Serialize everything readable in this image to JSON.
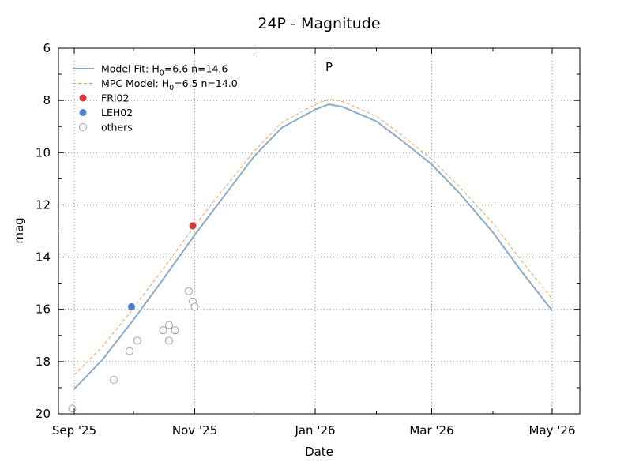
{
  "chart_data": {
    "type": "scatter",
    "title": "24P - Magnitude",
    "xlabel": "Date",
    "ylabel": "mag",
    "xlim": [
      "2025-08-24",
      "2026-05-15"
    ],
    "ylim": [
      20,
      6
    ],
    "y_inverted": true,
    "grid": true,
    "legend_position": "top-left",
    "x_ticks": [
      {
        "date": "2025-09-01",
        "label": "Sep '25"
      },
      {
        "date": "2025-11-01",
        "label": "Nov '25"
      },
      {
        "date": "2026-01-01",
        "label": "Jan '26"
      },
      {
        "date": "2026-03-01",
        "label": "Mar '26"
      },
      {
        "date": "2026-05-01",
        "label": "May '26"
      }
    ],
    "y_ticks": [
      6,
      8,
      10,
      12,
      14,
      16,
      18,
      20
    ],
    "perihelion": {
      "label": "P",
      "date": "2026-01-08"
    },
    "series": [
      {
        "name": "Model Fit: H0=6.6 n=14.6",
        "legend_main": "Model Fit: H",
        "legend_sub": "0",
        "legend_rest": "=6.6 n=14.6",
        "style": "line",
        "color": "#8aabca",
        "points": [
          [
            "2025-09-01",
            19.05
          ],
          [
            "2025-09-15",
            17.95
          ],
          [
            "2025-10-01",
            16.4
          ],
          [
            "2025-10-15",
            14.95
          ],
          [
            "2025-11-01",
            13.15
          ],
          [
            "2025-11-15",
            11.75
          ],
          [
            "2025-12-01",
            10.15
          ],
          [
            "2025-12-15",
            9.05
          ],
          [
            "2026-01-01",
            8.35
          ],
          [
            "2026-01-08",
            8.15
          ],
          [
            "2026-01-15",
            8.25
          ],
          [
            "2026-02-01",
            8.8
          ],
          [
            "2026-02-15",
            9.6
          ],
          [
            "2026-03-01",
            10.45
          ],
          [
            "2026-03-15",
            11.55
          ],
          [
            "2026-04-01",
            13.05
          ],
          [
            "2026-04-15",
            14.5
          ],
          [
            "2026-05-01",
            16.05
          ]
        ]
      },
      {
        "name": "MPC Model: H0=6.5 n=14.0",
        "legend_main": "MPC Model: H",
        "legend_sub": "0",
        "legend_rest": "=6.5 n=14.0",
        "style": "dashed-line",
        "color": "#f0a050",
        "points": [
          [
            "2025-09-01",
            18.5
          ],
          [
            "2025-09-15",
            17.45
          ],
          [
            "2025-10-01",
            15.95
          ],
          [
            "2025-10-15",
            14.55
          ],
          [
            "2025-11-01",
            12.8
          ],
          [
            "2025-11-15",
            11.45
          ],
          [
            "2025-12-01",
            9.95
          ],
          [
            "2025-12-15",
            8.85
          ],
          [
            "2026-01-01",
            8.15
          ],
          [
            "2026-01-08",
            7.95
          ],
          [
            "2026-01-15",
            8.05
          ],
          [
            "2026-02-01",
            8.6
          ],
          [
            "2026-02-15",
            9.4
          ],
          [
            "2026-03-01",
            10.25
          ],
          [
            "2026-03-15",
            11.3
          ],
          [
            "2026-04-01",
            12.7
          ],
          [
            "2026-04-15",
            14.1
          ],
          [
            "2026-05-01",
            15.6
          ]
        ]
      },
      {
        "name": "FRI02",
        "style": "marker-filled",
        "color": "#d63a3a",
        "points": [
          [
            "2025-10-31",
            12.8
          ]
        ]
      },
      {
        "name": "LEH02",
        "style": "marker-filled",
        "color": "#4f7fcf",
        "points": [
          [
            "2025-09-30",
            15.9
          ]
        ]
      },
      {
        "name": "others",
        "style": "marker-open",
        "color": "#a0a0a0",
        "points": [
          [
            "2025-08-31",
            19.8
          ],
          [
            "2025-09-21",
            18.7
          ],
          [
            "2025-09-29",
            17.6
          ],
          [
            "2025-10-03",
            17.2
          ],
          [
            "2025-10-16",
            16.8
          ],
          [
            "2025-10-19",
            16.6
          ],
          [
            "2025-10-19",
            17.2
          ],
          [
            "2025-10-22",
            16.8
          ],
          [
            "2025-10-29",
            15.3
          ],
          [
            "2025-10-31",
            15.7
          ],
          [
            "2025-11-01",
            15.9
          ]
        ]
      }
    ]
  }
}
